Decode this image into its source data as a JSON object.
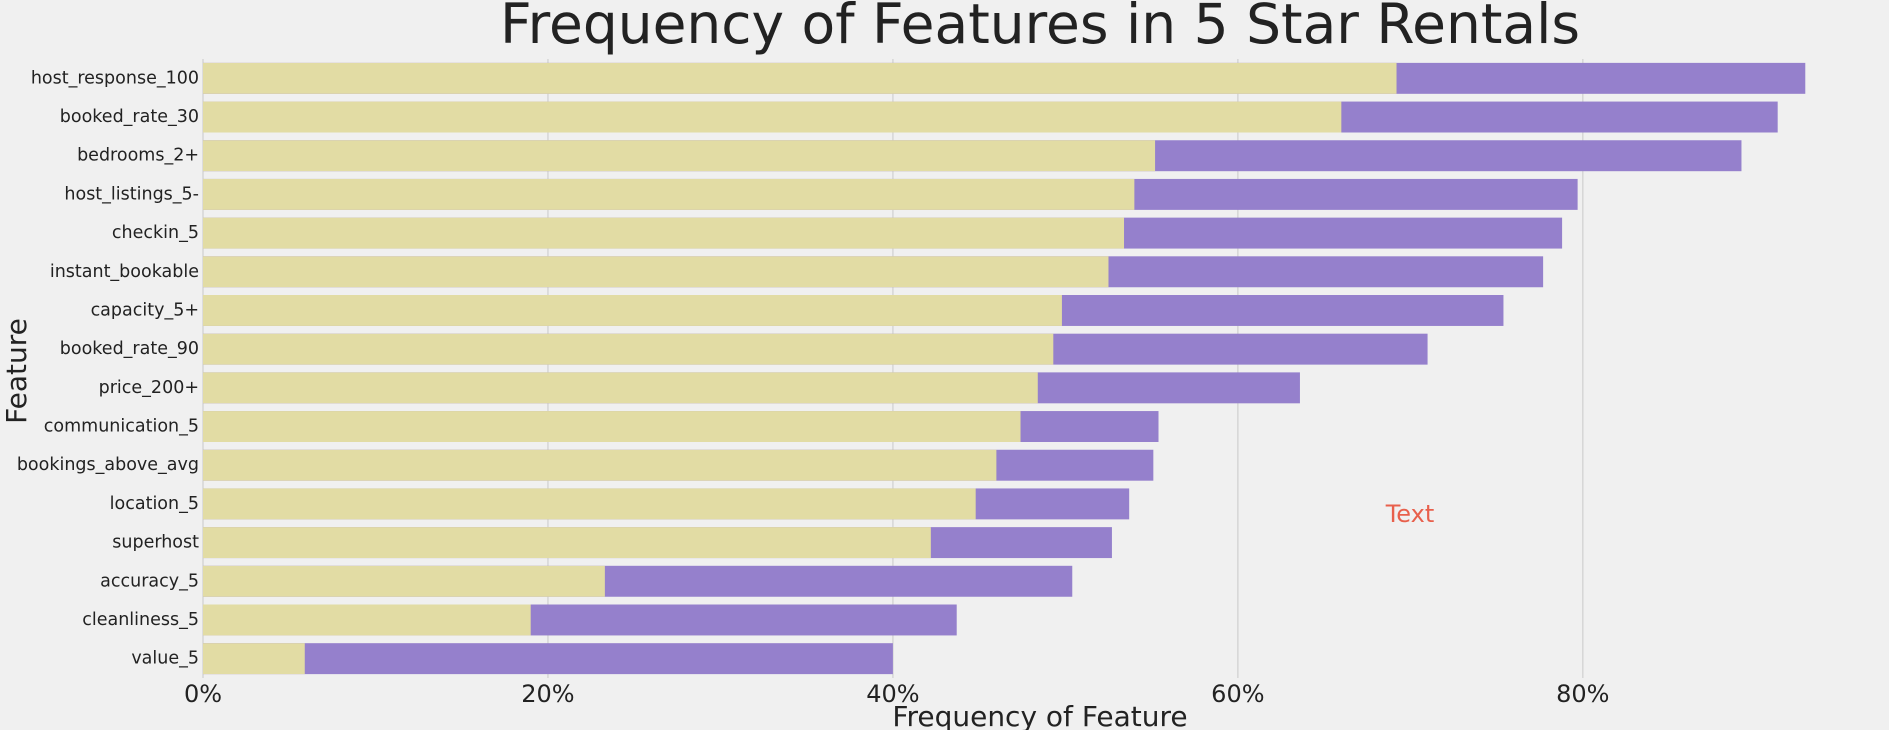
{
  "chart_data": {
    "type": "overlap-hbar",
    "title": "Frequency of Features in 5 Star Rentals",
    "x_label": "Frequency of Feature",
    "y_label": "Feature",
    "annotation": "Text",
    "categories": [
      "host_response_100",
      "booked_rate_30",
      "bedrooms_2+",
      "host_listings_5-",
      "checkin_5",
      "instant_bookable",
      "capacity_5+",
      "booked_rate_90",
      "price_200+",
      "communication_5",
      "bookings_above_avg",
      "location_5",
      "superhost",
      "accuracy_5",
      "cleanliness_5",
      "value_5"
    ],
    "series": [
      {
        "color": "#9580cc",
        "values": [
          92.9,
          91.3,
          89.2,
          79.7,
          78.8,
          77.7,
          75.4,
          71.0,
          63.6,
          55.4,
          55.1,
          53.7,
          52.7,
          50.4,
          43.7,
          40.0
        ]
      },
      {
        "color": "#e2dca4",
        "values": [
          69.2,
          66.0,
          55.2,
          54.0,
          53.4,
          52.5,
          49.8,
          49.3,
          48.4,
          47.4,
          46.0,
          44.8,
          42.2,
          23.3,
          19.0,
          5.9
        ]
      }
    ],
    "xlim": [
      0,
      97
    ],
    "xticks": [
      {
        "value": 0,
        "label": "0%"
      },
      {
        "value": 20,
        "label": "20%"
      },
      {
        "value": 40,
        "label": "40%"
      },
      {
        "value": 60,
        "label": "60%"
      },
      {
        "value": 80,
        "label": "80%"
      }
    ],
    "grid": true
  }
}
